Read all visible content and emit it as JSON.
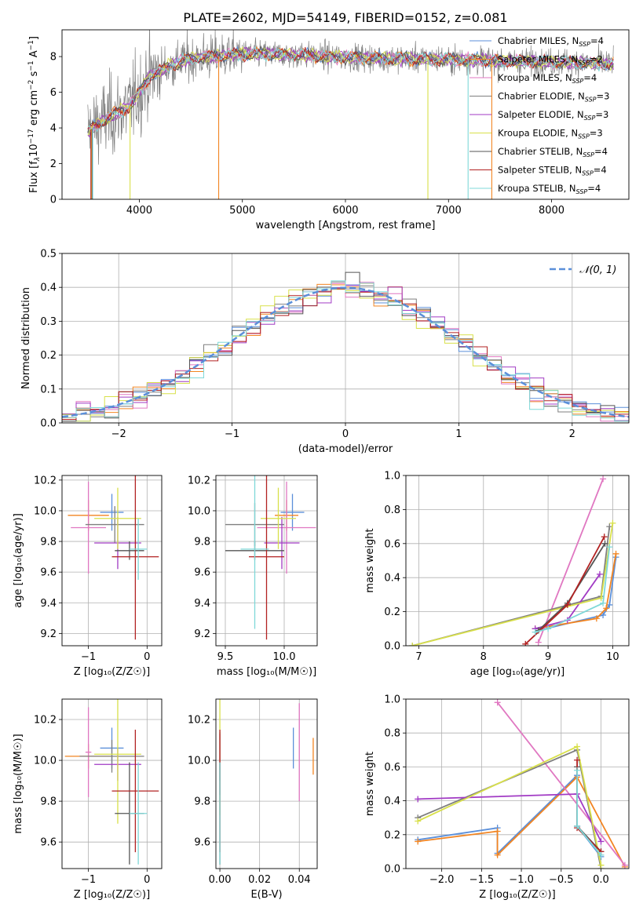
{
  "figure": {
    "title": "PLATE=2602, MJD=54149, FIBERID=0152, z=0.081"
  },
  "colors": {
    "series": [
      "#5b8fd9",
      "#f28522",
      "#e077c1",
      "#7f7f7f",
      "#a13ac4",
      "#d8e04a",
      "#555555",
      "#b22222",
      "#7fd8d8"
    ],
    "spectrum_data": "#808080",
    "gaussian": "#5b8fd9",
    "grid": "#b0b0b0"
  },
  "chart_data": [
    {
      "id": "spectrum",
      "type": "line",
      "title": "PLATE=2602, MJD=54149, FIBERID=0152, z=0.081",
      "xlabel": "wavelength [Angstrom, rest frame]",
      "ylabel_parts": [
        "Flux [f",
        "λ",
        "10",
        "−17",
        " erg cm",
        "−2",
        " s",
        "−1",
        " A",
        "−1",
        "]"
      ],
      "xlim": [
        3250,
        8750
      ],
      "ylim": [
        0,
        9.5
      ],
      "xticks": [
        4000,
        5000,
        6000,
        7000,
        8000
      ],
      "yticks": [
        0,
        2,
        4,
        6,
        8
      ],
      "grid": false,
      "legend_position": "top-right",
      "legend": [
        {
          "label": "Chabrier MILES, N",
          "sub": "SSP",
          "suffix": "=4"
        },
        {
          "label": "Salpeter MILES, N",
          "sub": "SSP",
          "suffix": "=2"
        },
        {
          "label": "Kroupa MILES, N",
          "sub": "SSP",
          "suffix": "=4"
        },
        {
          "label": "Chabrier ELODIE, N",
          "sub": "SSP",
          "suffix": "=3"
        },
        {
          "label": "Salpeter ELODIE, N",
          "sub": "SSP",
          "suffix": "=3"
        },
        {
          "label": "Kroupa ELODIE, N",
          "sub": "SSP",
          "suffix": "=3"
        },
        {
          "label": "Chabrier STELIB, N",
          "sub": "SSP",
          "suffix": "=4"
        },
        {
          "label": "Salpeter STELIB, N",
          "sub": "SSP",
          "suffix": "=4"
        },
        {
          "label": "Kroupa STELIB, N",
          "sub": "SSP",
          "suffix": "=4"
        }
      ],
      "continuum_points": [
        [
          3500,
          3.8
        ],
        [
          3700,
          4.6
        ],
        [
          3900,
          5.2
        ],
        [
          4000,
          6.0
        ],
        [
          4100,
          6.9
        ],
        [
          4300,
          7.5
        ],
        [
          4500,
          7.9
        ],
        [
          4700,
          8.0
        ],
        [
          5000,
          8.15
        ],
        [
          5500,
          8.1
        ],
        [
          6000,
          7.95
        ],
        [
          6500,
          7.9
        ],
        [
          7000,
          7.85
        ],
        [
          7500,
          7.75
        ],
        [
          8000,
          7.7
        ],
        [
          8600,
          7.6
        ]
      ],
      "drops": [
        {
          "wavelength": 3530,
          "series": "many"
        },
        {
          "wavelength": 3910,
          "series": "Kroupa ELODIE"
        },
        {
          "wavelength": 4770,
          "series": "Salpeter MILES"
        },
        {
          "wavelength": 6800,
          "series": "Kroupa ELODIE"
        },
        {
          "wavelength": 7190,
          "series": "Kroupa STELIB"
        },
        {
          "wavelength": 7420,
          "series": "Salpeter MILES"
        }
      ]
    },
    {
      "id": "residuals",
      "type": "histogram",
      "xlabel": "(data-model)/error",
      "ylabel": "Normed distribution",
      "xlim": [
        -2.5,
        2.5
      ],
      "ylim": [
        0,
        0.5
      ],
      "xticks": [
        -2,
        -1,
        0,
        1,
        2
      ],
      "xtick_labels": [
        "−2",
        "−1",
        "0",
        "1",
        "2"
      ],
      "yticks": [
        0.0,
        0.1,
        0.2,
        0.3,
        0.4,
        0.5
      ],
      "ytick_labels": [
        "0.0",
        "0.1",
        "0.2",
        "0.3",
        "0.4",
        "0.5"
      ],
      "grid": true,
      "bin_width": 0.125,
      "legend_position": "top-right",
      "gaussian_label": "𝒩(0, 1)",
      "gaussian_mean": 0,
      "gaussian_sigma": 1
    },
    {
      "id": "age-vs-Z",
      "type": "errorbar",
      "xlabel": "Z [log₁₀(Z/Z☉)]",
      "ylabel": "age  [log₁₀(age/yr)]",
      "xlim": [
        -1.45,
        0.25
      ],
      "ylim": [
        9.12,
        10.23
      ],
      "xticks": [
        -1,
        0
      ],
      "xtick_labels": [
        "−1",
        "0"
      ],
      "yticks": [
        9.2,
        9.4,
        9.6,
        9.8,
        10.0,
        10.2
      ],
      "ytick_labels": [
        "9.2",
        "9.4",
        "9.6",
        "9.8",
        "10.0",
        "10.2"
      ],
      "grid": true,
      "points": [
        {
          "s": 0,
          "x": -0.6,
          "xe": 0.2,
          "y": 9.99,
          "ye": 0.12
        },
        {
          "s": 1,
          "x": -1.0,
          "xe": 0.35,
          "y": 9.97,
          "ye": 0.1
        },
        {
          "s": 2,
          "x": -1.0,
          "xe": 0.3,
          "y": 9.89,
          "ye": 0.3
        },
        {
          "s": 3,
          "x": -0.55,
          "xe": 0.5,
          "y": 9.91,
          "ye": 0.12
        },
        {
          "s": 4,
          "x": -0.5,
          "xe": 0.4,
          "y": 9.79,
          "ye": 0.17
        },
        {
          "s": 5,
          "x": -0.5,
          "xe": 0.4,
          "y": 9.95,
          "ye": 0.2
        },
        {
          "s": 6,
          "x": -0.3,
          "xe": 0.25,
          "y": 9.74,
          "ye": 0.06
        },
        {
          "s": 7,
          "x": -0.2,
          "xe": 0.4,
          "y": 9.7,
          "ye": 0.54
        },
        {
          "s": 8,
          "x": -0.15,
          "xe": 0.15,
          "y": 9.75,
          "ye": 0.2
        }
      ]
    },
    {
      "id": "age-vs-mass",
      "type": "errorbar",
      "xlabel": "mass [log₁₀(M/M☉)]",
      "ylabel": "",
      "xlim": [
        9.42,
        10.28
      ],
      "ylim": [
        9.12,
        10.23
      ],
      "xticks": [
        9.5,
        10.0
      ],
      "xtick_labels": [
        "9.5",
        "10.0"
      ],
      "yticks": [
        9.2,
        9.4,
        9.6,
        9.8,
        10.0,
        10.2
      ],
      "ytick_labels": [
        "9.2",
        "9.4",
        "9.6",
        "9.8",
        "10.0",
        "10.2"
      ],
      "grid": true,
      "points": [
        {
          "s": 0,
          "x": 10.07,
          "xe": 0.1,
          "y": 9.99,
          "ye": 0.12
        },
        {
          "s": 1,
          "x": 10.02,
          "xe": 0.1,
          "y": 9.97,
          "ye": 0.1
        },
        {
          "s": 2,
          "x": 10.02,
          "xe": 0.25,
          "y": 9.89,
          "ye": 0.3
        },
        {
          "s": 3,
          "x": 9.75,
          "xe": 0.25,
          "y": 9.91,
          "ye": 0.14
        },
        {
          "s": 4,
          "x": 9.98,
          "xe": 0.15,
          "y": 9.79,
          "ye": 0.17
        },
        {
          "s": 5,
          "x": 9.95,
          "xe": 0.15,
          "y": 9.95,
          "ye": 0.2
        },
        {
          "s": 6,
          "x": 9.75,
          "xe": 0.25,
          "y": 9.74,
          "ye": 0.06
        },
        {
          "s": 7,
          "x": 9.85,
          "xe": 0.15,
          "y": 9.7,
          "ye": 0.54
        },
        {
          "s": 8,
          "x": 9.75,
          "xe": 0.12,
          "y": 9.75,
          "ye": 0.52
        }
      ]
    },
    {
      "id": "mass-weight-vs-age",
      "type": "line",
      "xlabel": "age  [log₁₀(age/yr)]",
      "ylabel": "mass weight",
      "xlim": [
        6.8,
        10.25
      ],
      "ylim": [
        0,
        1.0
      ],
      "xticks": [
        7,
        8,
        9,
        10
      ],
      "xtick_labels": [
        "7",
        "8",
        "9",
        "10"
      ],
      "yticks": [
        0.0,
        0.2,
        0.4,
        0.6,
        0.8,
        1.0
      ],
      "ytick_labels": [
        "0.0",
        "0.2",
        "0.4",
        "0.6",
        "0.8",
        "1.0"
      ],
      "grid": true,
      "series": [
        {
          "s": 0,
          "x": [
            8.85,
            9.85,
            9.95,
            10.05
          ],
          "y": [
            0.09,
            0.18,
            0.24,
            0.52
          ]
        },
        {
          "s": 1,
          "x": [
            8.8,
            9.75,
            9.9,
            10.05
          ],
          "y": [
            0.1,
            0.16,
            0.22,
            0.54
          ]
        },
        {
          "s": 2,
          "x": [
            8.85,
            9.85
          ],
          "y": [
            0.02,
            0.98
          ]
        },
        {
          "s": 3,
          "x": [
            6.9,
            9.82,
            9.95
          ],
          "y": [
            0.0,
            0.29,
            0.7
          ]
        },
        {
          "s": 4,
          "x": [
            8.8,
            9.3,
            9.8
          ],
          "y": [
            0.1,
            0.15,
            0.42
          ]
        },
        {
          "s": 5,
          "x": [
            6.9,
            9.82,
            10.0
          ],
          "y": [
            0.0,
            0.28,
            0.72
          ]
        },
        {
          "s": 6,
          "x": [
            8.85,
            9.3,
            9.88
          ],
          "y": [
            0.09,
            0.25,
            0.6
          ]
        },
        {
          "s": 7,
          "x": [
            8.65,
            9.3,
            9.87
          ],
          "y": [
            0.01,
            0.24,
            0.64
          ]
        },
        {
          "s": 8,
          "x": [
            8.8,
            9.0,
            9.85,
            9.95
          ],
          "y": [
            0.08,
            0.1,
            0.25,
            0.58
          ]
        }
      ]
    },
    {
      "id": "mass-vs-Z",
      "type": "errorbar",
      "xlabel": "Z [log₁₀(Z/Z☉)]",
      "ylabel": "mass [log₁₀(M/M☉)]",
      "xlim": [
        -1.45,
        0.25
      ],
      "ylim": [
        9.47,
        10.3
      ],
      "xticks": [
        -1,
        0
      ],
      "xtick_labels": [
        "−1",
        "0"
      ],
      "yticks": [
        9.6,
        9.8,
        10.0,
        10.2
      ],
      "ytick_labels": [
        "9.6",
        "9.8",
        "10.0",
        "10.2"
      ],
      "grid": true,
      "points": [
        {
          "s": 0,
          "x": -0.6,
          "xe": 0.2,
          "y": 10.06,
          "ye": 0.1
        },
        {
          "s": 1,
          "x": -1.0,
          "xe": 0.4,
          "y": 10.02,
          "ye": 0.06
        },
        {
          "s": 2,
          "x": -1.0,
          "xe": 0.05,
          "y": 10.04,
          "ye": 0.22
        },
        {
          "s": 3,
          "x": -0.6,
          "xe": 0.55,
          "y": 10.02,
          "ye": 0.08
        },
        {
          "s": 4,
          "x": -0.5,
          "xe": 0.4,
          "y": 9.98,
          "ye": 0.08
        },
        {
          "s": 5,
          "x": -0.5,
          "xe": 0.4,
          "y": 10.03,
          "ye": 0.34
        },
        {
          "s": 6,
          "x": -0.3,
          "xe": 0.25,
          "y": 9.74,
          "ye": 0.25
        },
        {
          "s": 7,
          "x": -0.2,
          "xe": 0.4,
          "y": 9.85,
          "ye": 0.3
        },
        {
          "s": 8,
          "x": -0.15,
          "xe": 0.15,
          "y": 9.74,
          "ye": 0.25
        }
      ]
    },
    {
      "id": "mass-vs-EBV",
      "type": "errorbar",
      "xlabel": "E(B-V)",
      "ylabel": "",
      "xlim": [
        -0.002,
        0.049
      ],
      "ylim": [
        9.47,
        10.3
      ],
      "xticks": [
        0.0,
        0.02,
        0.04
      ],
      "xtick_labels": [
        "0.00",
        "0.02",
        "0.04"
      ],
      "yticks": [
        9.6,
        9.8,
        10.0,
        10.2
      ],
      "ytick_labels": [
        "9.6",
        "9.8",
        "10.0",
        "10.2"
      ],
      "grid": true,
      "points": [
        {
          "s": 0,
          "x": 0.037,
          "xe": 0,
          "y": 10.06,
          "ye": 0.1
        },
        {
          "s": 1,
          "x": 0.047,
          "xe": 0,
          "y": 10.02,
          "ye": 0.09
        },
        {
          "s": 2,
          "x": 0.04,
          "xe": 0,
          "y": 10.04,
          "ye": 0.24
        },
        {
          "s": 3,
          "x": 0.0,
          "xe": 0,
          "y": 10.02,
          "ye": 0.12
        },
        {
          "s": 4,
          "x": 0.0,
          "xe": 0,
          "y": 9.98,
          "ye": 0.15
        },
        {
          "s": 5,
          "x": 0.0,
          "xe": 0,
          "y": 10.03,
          "ye": 0.3
        },
        {
          "s": 6,
          "x": 0.0,
          "xe": 0,
          "y": 9.74,
          "ye": 0.25
        },
        {
          "s": 7,
          "x": 0.0,
          "xe": 0,
          "y": 9.85,
          "ye": 0.3
        },
        {
          "s": 8,
          "x": 0.0,
          "xe": 0,
          "y": 9.74,
          "ye": 0.25
        }
      ]
    },
    {
      "id": "mass-weight-vs-Z",
      "type": "line",
      "xlabel": "Z [log₁₀(Z/Z☉)]",
      "ylabel": "mass weight",
      "xlim": [
        -2.45,
        0.35
      ],
      "ylim": [
        0,
        1.0
      ],
      "xticks": [
        -2.0,
        -1.5,
        -1.0,
        -0.5,
        0.0
      ],
      "xtick_labels": [
        "−2.0",
        "−1.5",
        "−1.0",
        "−0.5",
        "0.0"
      ],
      "yticks": [
        0.0,
        0.2,
        0.4,
        0.6,
        0.8,
        1.0
      ],
      "ytick_labels": [
        "0.0",
        "0.2",
        "0.4",
        "0.6",
        "0.8",
        "1.0"
      ],
      "grid": true,
      "series": [
        {
          "s": 0,
          "x": [
            -2.3,
            -1.3,
            -1.3,
            -0.3,
            -0.3,
            0.0
          ],
          "y": [
            0.17,
            0.24,
            0.09,
            0.55,
            0.25,
            0.07
          ]
        },
        {
          "s": 1,
          "x": [
            -2.3,
            -1.3,
            -1.3,
            -0.3,
            0.3
          ],
          "y": [
            0.16,
            0.22,
            0.08,
            0.54,
            0.01
          ]
        },
        {
          "s": 2,
          "x": [
            -1.3,
            0.3
          ],
          "y": [
            0.98,
            0.02
          ]
        },
        {
          "s": 3,
          "x": [
            -2.3,
            -0.3,
            0.0
          ],
          "y": [
            0.3,
            0.7,
            0.0
          ]
        },
        {
          "s": 4,
          "x": [
            -2.3,
            -0.3,
            0.0
          ],
          "y": [
            0.41,
            0.44,
            0.16
          ]
        },
        {
          "s": 5,
          "x": [
            -2.3,
            -0.3,
            0.0
          ],
          "y": [
            0.28,
            0.72,
            0.02
          ]
        },
        {
          "s": 6,
          "x": [
            -0.3,
            -0.3,
            0.0
          ],
          "y": [
            0.6,
            0.25,
            0.1
          ]
        },
        {
          "s": 7,
          "x": [
            -0.3,
            -0.3,
            0.0
          ],
          "y": [
            0.64,
            0.24,
            0.1
          ]
        },
        {
          "s": 8,
          "x": [
            -0.3,
            -0.3,
            0.0
          ],
          "y": [
            0.58,
            0.25,
            0.08
          ]
        }
      ]
    }
  ]
}
